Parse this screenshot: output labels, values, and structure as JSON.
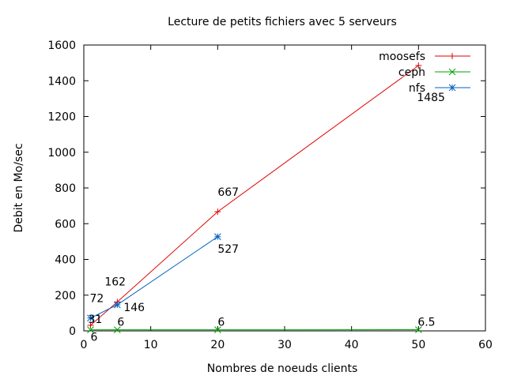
{
  "chart_data": {
    "type": "line",
    "title": "Lecture de petits fichiers avec 5 serveurs",
    "xlabel": "Nombres de noeuds clients",
    "ylabel": "Debit en Mo/sec",
    "xlim": [
      0,
      60
    ],
    "ylim": [
      0,
      1600
    ],
    "xticks": [
      0,
      10,
      20,
      30,
      40,
      50,
      60
    ],
    "yticks": [
      0,
      200,
      400,
      600,
      800,
      1000,
      1200,
      1400,
      1600
    ],
    "grid": false,
    "legend": "top-right",
    "series": [
      {
        "name": "moosefs",
        "color": "#e00000",
        "marker": "plus",
        "x": [
          1,
          5,
          20,
          50
        ],
        "y": [
          31,
          162,
          667,
          1485
        ],
        "labels": [
          "31",
          "162",
          "667",
          "1485"
        ]
      },
      {
        "name": "ceph",
        "color": "#00a000",
        "marker": "cross",
        "x": [
          1,
          5,
          20,
          50
        ],
        "y": [
          6,
          6,
          6,
          6.5
        ],
        "labels": [
          "6",
          "6",
          "6",
          "6.5"
        ]
      },
      {
        "name": "nfs",
        "color": "#0060c0",
        "marker": "star",
        "x": [
          1,
          5,
          20
        ],
        "y": [
          72,
          146,
          527
        ],
        "labels": [
          "72",
          "146",
          "527"
        ]
      }
    ]
  }
}
